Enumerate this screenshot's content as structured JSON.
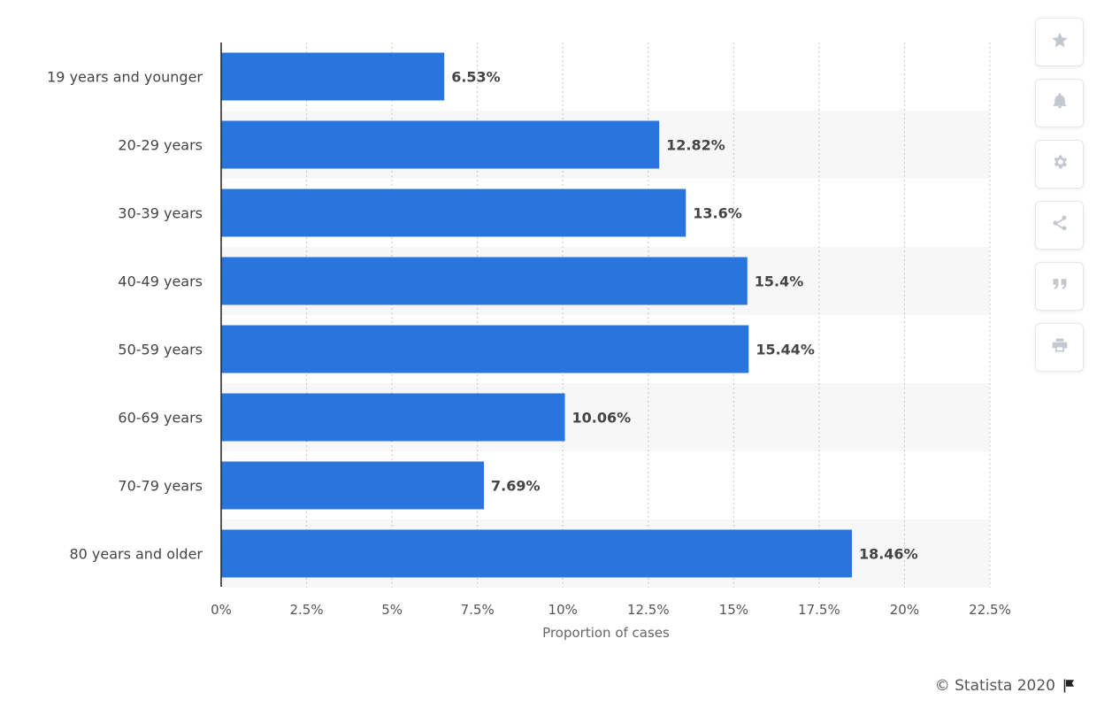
{
  "chart_data": {
    "type": "bar",
    "orientation": "horizontal",
    "categories": [
      "19 years and younger",
      "20-29 years",
      "30-39 years",
      "40-49 years",
      "50-59 years",
      "60-69 years",
      "70-79 years",
      "80 years and older"
    ],
    "values": [
      6.53,
      12.82,
      13.6,
      15.4,
      15.44,
      10.06,
      7.69,
      18.46
    ],
    "value_labels": [
      "6.53%",
      "12.82%",
      "13.6%",
      "15.4%",
      "15.44%",
      "10.06%",
      "7.69%",
      "18.46%"
    ],
    "title": "",
    "xlabel": "Proportion of cases",
    "ylabel": "",
    "xlim": [
      0,
      22.5
    ],
    "ticks": [
      "0%",
      "2.5%",
      "5%",
      "7.5%",
      "10%",
      "12.5%",
      "15%",
      "17.5%",
      "20%",
      "22.5%"
    ],
    "grid": true,
    "bar_color": "#2876dd"
  },
  "toolbar": {
    "icons": [
      "star-icon",
      "bell-icon",
      "gear-icon",
      "share-icon",
      "quote-icon",
      "print-icon"
    ]
  },
  "footer": {
    "credit": "© Statista 2020"
  }
}
